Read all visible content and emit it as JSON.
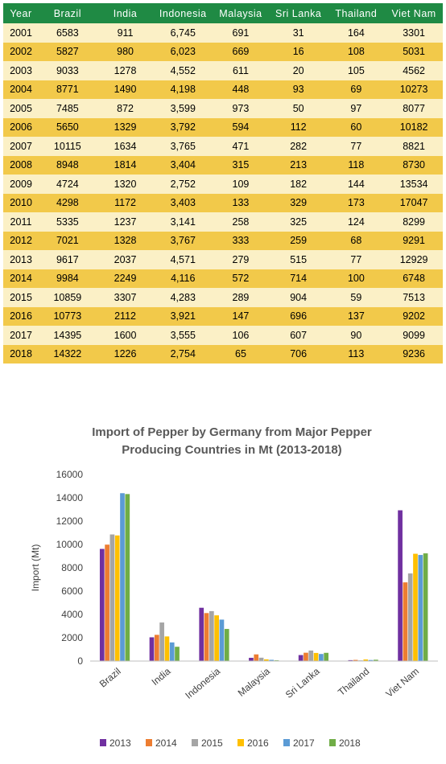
{
  "table": {
    "headers": [
      "Year",
      "Brazil",
      "India",
      "Indonesia",
      "Malaysia",
      "Sri Lanka",
      "Thailand",
      "Viet Nam"
    ],
    "rows": [
      [
        "2001",
        "6583",
        "911",
        "6,745",
        "691",
        "31",
        "164",
        "3301"
      ],
      [
        "2002",
        "5827",
        "980",
        "6,023",
        "669",
        "16",
        "108",
        "5031"
      ],
      [
        "2003",
        "9033",
        "1278",
        "4,552",
        "611",
        "20",
        "105",
        "4562"
      ],
      [
        "2004",
        "8771",
        "1490",
        "4,198",
        "448",
        "93",
        "69",
        "10273"
      ],
      [
        "2005",
        "7485",
        "872",
        "3,599",
        "973",
        "50",
        "97",
        "8077"
      ],
      [
        "2006",
        "5650",
        "1329",
        "3,792",
        "594",
        "112",
        "60",
        "10182"
      ],
      [
        "2007",
        "10115",
        "1634",
        "3,765",
        "471",
        "282",
        "77",
        "8821"
      ],
      [
        "2008",
        "8948",
        "1814",
        "3,404",
        "315",
        "213",
        "118",
        "8730"
      ],
      [
        "2009",
        "4724",
        "1320",
        "2,752",
        "109",
        "182",
        "144",
        "13534"
      ],
      [
        "2010",
        "4298",
        "1172",
        "3,403",
        "133",
        "329",
        "173",
        "17047"
      ],
      [
        "2011",
        "5335",
        "1237",
        "3,141",
        "258",
        "325",
        "124",
        "8299"
      ],
      [
        "2012",
        "7021",
        "1328",
        "3,767",
        "333",
        "259",
        "68",
        "9291"
      ],
      [
        "2013",
        "9617",
        "2037",
        "4,571",
        "279",
        "515",
        "77",
        "12929"
      ],
      [
        "2014",
        "9984",
        "2249",
        "4,116",
        "572",
        "714",
        "100",
        "6748"
      ],
      [
        "2015",
        "10859",
        "3307",
        "4,283",
        "289",
        "904",
        "59",
        "7513"
      ],
      [
        "2016",
        "10773",
        "2112",
        "3,921",
        "147",
        "696",
        "137",
        "9202"
      ],
      [
        "2017",
        "14395",
        "1600",
        "3,555",
        "106",
        "607",
        "90",
        "9099"
      ],
      [
        "2018",
        "14322",
        "1226",
        "2,754",
        "65",
        "706",
        "113",
        "9236"
      ]
    ]
  },
  "chart_data": {
    "type": "bar",
    "title": "Import of Pepper by Germany from Major Pepper Producing Countries in Mt (2013-2018)",
    "title_lines": [
      "Import of Pepper by Germany from Major Pepper",
      "Producing Countries in Mt (2013-2018)"
    ],
    "ylabel": "Import (Mt)",
    "xlabel": "",
    "ylim": [
      0,
      16000
    ],
    "yticks": [
      0,
      2000,
      4000,
      6000,
      8000,
      10000,
      12000,
      14000,
      16000
    ],
    "ytick_labels": [
      "0",
      "2000",
      "4000",
      "6000",
      "8000",
      "10000",
      "12000",
      "14000",
      "16000"
    ],
    "grid": false,
    "legend_position": "bottom",
    "categories": [
      "Brazil",
      "India",
      "Indonesia",
      "Malaysia",
      "Sri Lanka",
      "Thailand",
      "Viet Nam"
    ],
    "series": [
      {
        "name": "2013",
        "color": "#7030a0",
        "values": [
          9617,
          2037,
          4571,
          279,
          515,
          77,
          12929
        ]
      },
      {
        "name": "2014",
        "color": "#ed7d31",
        "values": [
          9984,
          2249,
          4116,
          572,
          714,
          100,
          6748
        ]
      },
      {
        "name": "2015",
        "color": "#a5a5a5",
        "values": [
          10859,
          3307,
          4283,
          289,
          904,
          59,
          7513
        ]
      },
      {
        "name": "2016",
        "color": "#ffc000",
        "values": [
          10773,
          2112,
          3921,
          147,
          696,
          137,
          9202
        ]
      },
      {
        "name": "2017",
        "color": "#5b9bd5",
        "values": [
          14395,
          1600,
          3555,
          106,
          607,
          90,
          9099
        ]
      },
      {
        "name": "2018",
        "color": "#70ad47",
        "values": [
          14322,
          1226,
          2754,
          65,
          706,
          113,
          9236
        ]
      }
    ]
  }
}
